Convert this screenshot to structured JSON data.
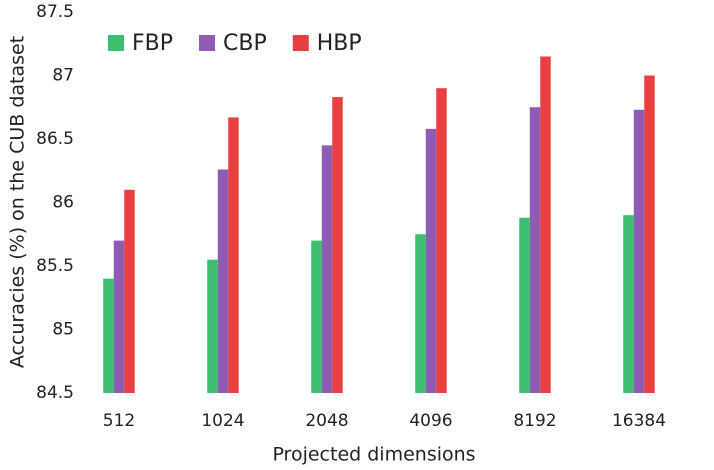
{
  "chart_data": {
    "type": "bar",
    "x_label": "Projected dimensions",
    "y_label": "Accuracies (%) on the CUB dataset",
    "categories": [
      "512",
      "1024",
      "2048",
      "4096",
      "8192",
      "16384"
    ],
    "series": [
      {
        "name": "FBP",
        "color": "#3cbf6e",
        "values": [
          85.4,
          85.55,
          85.7,
          85.75,
          85.88,
          85.9
        ]
      },
      {
        "name": "CBP",
        "color": "#8e5bb5",
        "values": [
          85.7,
          86.26,
          86.45,
          86.58,
          86.75,
          86.73
        ]
      },
      {
        "name": "HBP",
        "color": "#e84040",
        "values": [
          86.1,
          86.67,
          86.83,
          86.9,
          87.15,
          87.0
        ]
      }
    ],
    "ylim": [
      84.5,
      87.5
    ],
    "yticks": [
      84.5,
      85,
      85.5,
      86,
      86.5,
      87,
      87.5
    ],
    "grid": false,
    "legend": "top-left"
  }
}
